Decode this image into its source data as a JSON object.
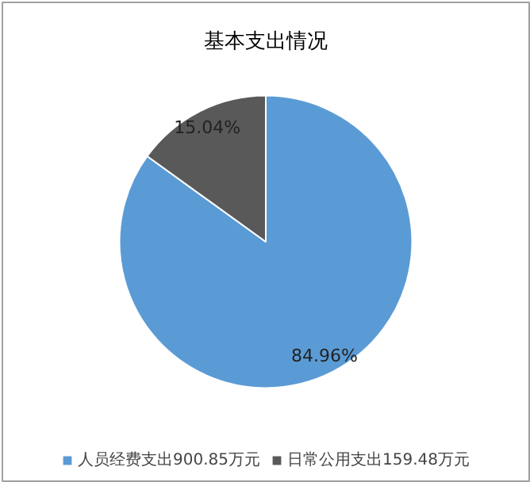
{
  "chart_data": {
    "type": "pie",
    "title": "基本支出情况",
    "categories": [
      "人员经费支出900.85万元",
      "日常公用支出159.48万元"
    ],
    "values": [
      84.96,
      15.04
    ],
    "value_labels": [
      "84.96%",
      "15.04%"
    ],
    "colors": [
      "#5b9bd5",
      "#595959"
    ],
    "legend": "bottom"
  }
}
